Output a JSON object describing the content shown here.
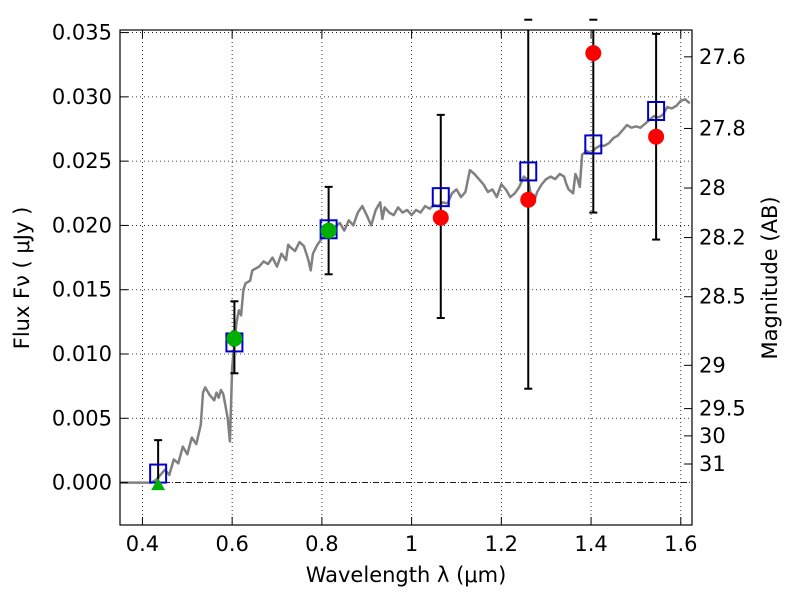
{
  "chart_data": {
    "type": "scatter",
    "xlabel": "Wavelength  λ (μm)",
    "ylabel": "Flux  Fν  ( μJy )",
    "ylabel_right": "Magnitude (AB)",
    "xlim": [
      0.35,
      1.625
    ],
    "ylim": [
      -0.0033,
      0.0352
    ],
    "x_ticks": [
      {
        "value": 0.4,
        "label": "0.4"
      },
      {
        "value": 0.6,
        "label": "0.6"
      },
      {
        "value": 0.8,
        "label": "0.8"
      },
      {
        "value": 1.0,
        "label": "1"
      },
      {
        "value": 1.2,
        "label": "1.2"
      },
      {
        "value": 1.4,
        "label": "1.4"
      },
      {
        "value": 1.6,
        "label": "1.6"
      }
    ],
    "y_ticks": [
      {
        "value": 0.0,
        "label": "0.000"
      },
      {
        "value": 0.005,
        "label": "0.005"
      },
      {
        "value": 0.01,
        "label": "0.010"
      },
      {
        "value": 0.015,
        "label": "0.015"
      },
      {
        "value": 0.02,
        "label": "0.020"
      },
      {
        "value": 0.025,
        "label": "0.025"
      },
      {
        "value": 0.03,
        "label": "0.030"
      },
      {
        "value": 0.035,
        "label": "0.035"
      }
    ],
    "magnitude_ticks": [
      {
        "mag": 27.6,
        "label": "27.6"
      },
      {
        "mag": 27.8,
        "label": "27.8"
      },
      {
        "mag": 28.0,
        "label": "28"
      },
      {
        "mag": 28.2,
        "label": "28.2"
      },
      {
        "mag": 28.5,
        "label": "28.5"
      },
      {
        "mag": 29.0,
        "label": "29"
      },
      {
        "mag": 29.5,
        "label": "29.5"
      },
      {
        "mag": 30.0,
        "label": "30"
      },
      {
        "mag": 31.0,
        "label": "31"
      }
    ],
    "grid": true,
    "grid_style": "dotted",
    "zero_line": "dash-dot",
    "colors": {
      "model": "#808080",
      "model_photometry": "#0000cc",
      "red_points": "#ff0000",
      "green_points": "#00b000",
      "error_bars": "#000000"
    },
    "series": [
      {
        "marker": "line",
        "points": [
          [
            0.35,
            0.0
          ],
          [
            0.42,
            0.0
          ],
          [
            0.43,
            0.0002
          ],
          [
            0.44,
            0.0006
          ],
          [
            0.45,
            0.001
          ],
          [
            0.46,
            0.0006
          ],
          [
            0.47,
            0.0018
          ],
          [
            0.48,
            0.0015
          ],
          [
            0.49,
            0.0028
          ],
          [
            0.5,
            0.0022
          ],
          [
            0.51,
            0.0035
          ],
          [
            0.52,
            0.003
          ],
          [
            0.53,
            0.0045
          ],
          [
            0.535,
            0.007
          ],
          [
            0.54,
            0.0074
          ],
          [
            0.55,
            0.0068
          ],
          [
            0.56,
            0.0064
          ],
          [
            0.565,
            0.007
          ],
          [
            0.57,
            0.0066
          ],
          [
            0.575,
            0.0072
          ],
          [
            0.58,
            0.0069
          ],
          [
            0.585,
            0.006
          ],
          [
            0.59,
            0.005
          ],
          [
            0.595,
            0.0032
          ],
          [
            0.6,
            0.009
          ],
          [
            0.605,
            0.0108
          ],
          [
            0.61,
            0.0125
          ],
          [
            0.615,
            0.0134
          ],
          [
            0.62,
            0.013
          ],
          [
            0.625,
            0.015
          ],
          [
            0.63,
            0.0155
          ],
          [
            0.64,
            0.0157
          ],
          [
            0.645,
            0.0165
          ],
          [
            0.66,
            0.0168
          ],
          [
            0.67,
            0.0172
          ],
          [
            0.68,
            0.017
          ],
          [
            0.69,
            0.0175
          ],
          [
            0.7,
            0.0168
          ],
          [
            0.71,
            0.0178
          ],
          [
            0.72,
            0.0173
          ],
          [
            0.725,
            0.0185
          ],
          [
            0.73,
            0.0183
          ],
          [
            0.74,
            0.018
          ],
          [
            0.75,
            0.0187
          ],
          [
            0.76,
            0.0184
          ],
          [
            0.77,
            0.0173
          ],
          [
            0.775,
            0.0165
          ],
          [
            0.78,
            0.0178
          ],
          [
            0.79,
            0.0185
          ],
          [
            0.8,
            0.019
          ],
          [
            0.81,
            0.0195
          ],
          [
            0.82,
            0.0195
          ],
          [
            0.83,
            0.0199
          ],
          [
            0.84,
            0.0202
          ],
          [
            0.85,
            0.0196
          ],
          [
            0.86,
            0.0204
          ],
          [
            0.87,
            0.02
          ],
          [
            0.88,
            0.021
          ],
          [
            0.89,
            0.0215
          ],
          [
            0.9,
            0.0208
          ],
          [
            0.91,
            0.02
          ],
          [
            0.92,
            0.0212
          ],
          [
            0.93,
            0.0218
          ],
          [
            0.935,
            0.0205
          ],
          [
            0.94,
            0.0214
          ],
          [
            0.95,
            0.021
          ],
          [
            0.96,
            0.0208
          ],
          [
            0.97,
            0.0214
          ],
          [
            0.98,
            0.021
          ],
          [
            0.99,
            0.0212
          ],
          [
            1.0,
            0.0208
          ],
          [
            1.01,
            0.0212
          ],
          [
            1.02,
            0.021
          ],
          [
            1.03,
            0.0215
          ],
          [
            1.04,
            0.0213
          ],
          [
            1.05,
            0.0216
          ],
          [
            1.06,
            0.0215
          ],
          [
            1.07,
            0.0218
          ],
          [
            1.08,
            0.0217
          ],
          [
            1.09,
            0.0225
          ],
          [
            1.1,
            0.0228
          ],
          [
            1.11,
            0.0222
          ],
          [
            1.12,
            0.0226
          ],
          [
            1.13,
            0.0243
          ],
          [
            1.14,
            0.024
          ],
          [
            1.15,
            0.0236
          ],
          [
            1.16,
            0.0232
          ],
          [
            1.17,
            0.0226
          ],
          [
            1.18,
            0.0228
          ],
          [
            1.19,
            0.0222
          ],
          [
            1.2,
            0.0232
          ],
          [
            1.21,
            0.0228
          ],
          [
            1.22,
            0.0222
          ],
          [
            1.23,
            0.0225
          ],
          [
            1.24,
            0.023
          ],
          [
            1.25,
            0.0238
          ],
          [
            1.26,
            0.0235
          ],
          [
            1.265,
            0.0225
          ],
          [
            1.27,
            0.0216
          ],
          [
            1.28,
            0.0226
          ],
          [
            1.29,
            0.0232
          ],
          [
            1.3,
            0.0236
          ],
          [
            1.31,
            0.0238
          ],
          [
            1.32,
            0.0236
          ],
          [
            1.33,
            0.024
          ],
          [
            1.34,
            0.0238
          ],
          [
            1.345,
            0.0232
          ],
          [
            1.35,
            0.0228
          ],
          [
            1.36,
            0.0225
          ],
          [
            1.365,
            0.024
          ],
          [
            1.37,
            0.0236
          ],
          [
            1.375,
            0.023
          ],
          [
            1.38,
            0.0255
          ],
          [
            1.39,
            0.0258
          ],
          [
            1.4,
            0.0256
          ],
          [
            1.41,
            0.026
          ],
          [
            1.42,
            0.0262
          ],
          [
            1.43,
            0.0262
          ],
          [
            1.44,
            0.0264
          ],
          [
            1.45,
            0.0268
          ],
          [
            1.46,
            0.027
          ],
          [
            1.47,
            0.0274
          ],
          [
            1.48,
            0.0278
          ],
          [
            1.49,
            0.0276
          ],
          [
            1.5,
            0.0277
          ],
          [
            1.51,
            0.0276
          ],
          [
            1.52,
            0.0279
          ],
          [
            1.53,
            0.0282
          ],
          [
            1.54,
            0.0285
          ],
          [
            1.55,
            0.0284
          ],
          [
            1.56,
            0.0286
          ],
          [
            1.57,
            0.0292
          ],
          [
            1.58,
            0.0291
          ],
          [
            1.59,
            0.0293
          ],
          [
            1.6,
            0.0297
          ],
          [
            1.61,
            0.0298
          ],
          [
            1.62,
            0.0295
          ]
        ]
      },
      {
        "marker": "open-square",
        "points": [
          [
            0.435,
            0.0007
          ],
          [
            0.605,
            0.0109
          ],
          [
            0.815,
            0.0197
          ],
          [
            1.065,
            0.0222
          ],
          [
            1.26,
            0.0242
          ],
          [
            1.405,
            0.0263
          ],
          [
            1.545,
            0.0289
          ]
        ]
      },
      {
        "marker": "filled-circle",
        "points": [
          {
            "x": 1.065,
            "y": 0.0206,
            "err_lo": 0.0128,
            "err_hi": 0.0286
          },
          {
            "x": 1.26,
            "y": 0.022,
            "err_lo": 0.0073,
            "err_hi": 0.036
          },
          {
            "x": 1.405,
            "y": 0.0334,
            "err_lo": 0.021,
            "err_hi": 0.036
          },
          {
            "x": 1.545,
            "y": 0.0269,
            "err_lo": 0.0189,
            "err_hi": 0.0349
          }
        ]
      },
      {
        "marker": "filled-circle-green",
        "points": [
          {
            "x": 0.605,
            "y": 0.0112,
            "err_lo": 0.0085,
            "err_hi": 0.0141
          },
          {
            "x": 0.815,
            "y": 0.0196,
            "err_lo": 0.0162,
            "err_hi": 0.023
          }
        ]
      },
      {
        "marker": "triangle-up-green",
        "points": [
          {
            "x": 0.435,
            "y": -0.0002,
            "err_hi": 0.0033
          }
        ]
      }
    ]
  }
}
